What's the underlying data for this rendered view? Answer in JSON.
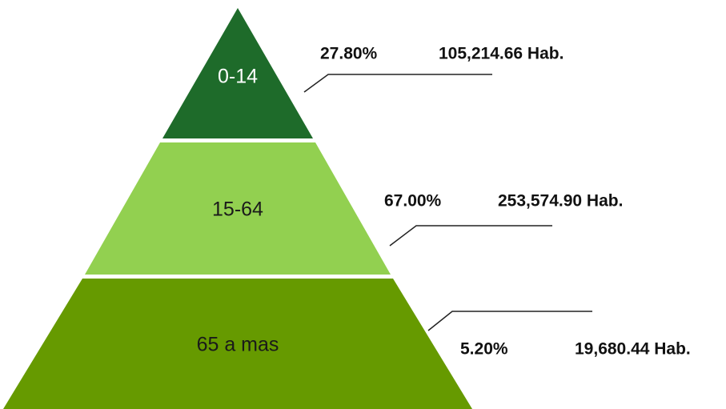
{
  "levels": [
    {
      "label": "0-14",
      "percent": "27.80%",
      "population": "105,214.66 Hab."
    },
    {
      "label": "15-64",
      "percent": "67.00%",
      "population": "253,574.90 Hab."
    },
    {
      "label": "65 a mas",
      "percent": "5.20%",
      "population": "19,680.44 Hab."
    }
  ]
}
